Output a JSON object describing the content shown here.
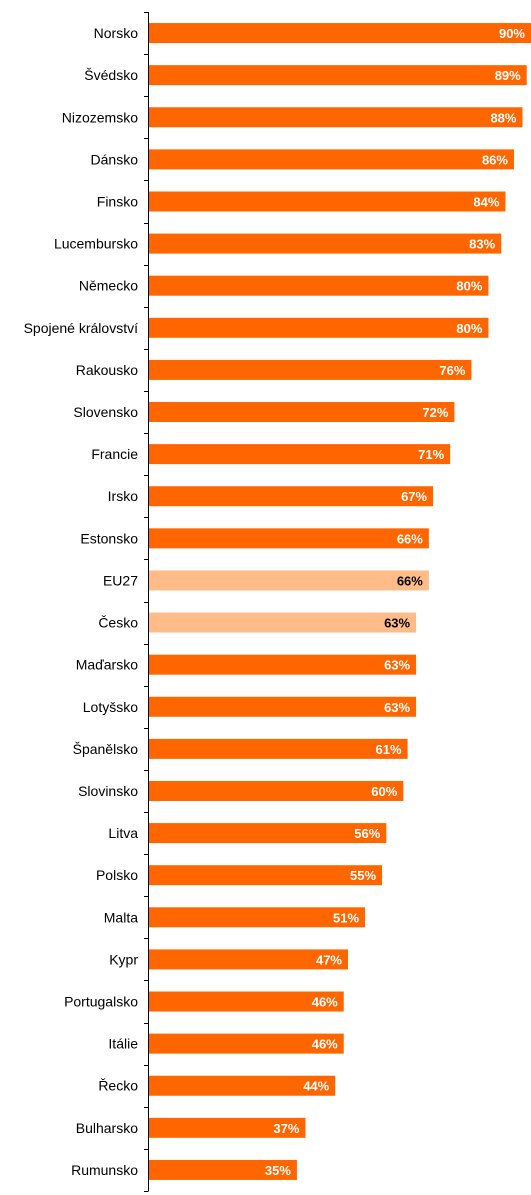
{
  "chart_data": {
    "type": "bar",
    "orientation": "horizontal",
    "title": "",
    "xlabel": "",
    "ylabel": "",
    "categories": [
      "Norsko",
      "Švédsko",
      "Nizozemsko",
      "Dánsko",
      "Finsko",
      "Lucembursko",
      "Německo",
      "Spojené království",
      "Rakousko",
      "Slovensko",
      "Francie",
      "Irsko",
      "Estonsko",
      "EU27",
      "Česko",
      "Maďarsko",
      "Lotyšsko",
      "Španělsko",
      "Slovinsko",
      "Litva",
      "Polsko",
      "Malta",
      "Kypr",
      "Portugalsko",
      "Itálie",
      "Řecko",
      "Bulharsko",
      "Rumunsko"
    ],
    "values": [
      90,
      89,
      88,
      86,
      84,
      83,
      80,
      80,
      76,
      72,
      71,
      67,
      66,
      66,
      63,
      63,
      63,
      61,
      60,
      56,
      55,
      51,
      47,
      46,
      46,
      44,
      37,
      35
    ],
    "value_labels": [
      "90%",
      "89%",
      "88%",
      "86%",
      "84%",
      "83%",
      "80%",
      "80%",
      "76%",
      "72%",
      "71%",
      "67%",
      "66%",
      "66%",
      "63%",
      "63%",
      "63%",
      "61%",
      "60%",
      "56%",
      "55%",
      "51%",
      "47%",
      "46%",
      "46%",
      "44%",
      "37%",
      "35%"
    ],
    "highlighted": [
      "EU27",
      "Česko"
    ],
    "xlim": [
      0,
      90
    ],
    "grid": false,
    "legend": "none",
    "colors": {
      "bar": "#ff6600",
      "highlight_bar": "#ffbb88",
      "bar_label": "#ffffff",
      "highlight_label": "#000000",
      "axis": "#000000"
    }
  }
}
